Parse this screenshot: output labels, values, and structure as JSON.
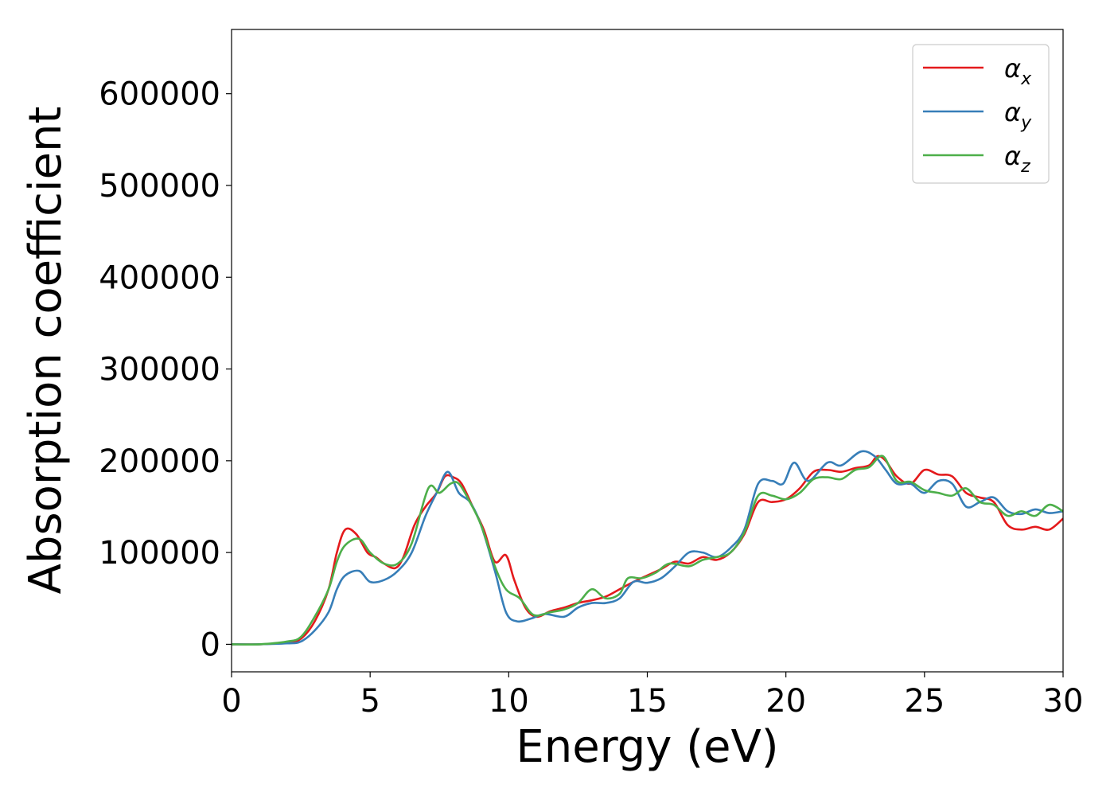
{
  "chart_data": {
    "type": "line",
    "title": "",
    "xlabel": "Energy (eV)",
    "ylabel": "Absorption coefficient",
    "xlim": [
      0,
      30
    ],
    "ylim": [
      -30000,
      670000
    ],
    "xticks": [
      0,
      5,
      10,
      15,
      20,
      25,
      30
    ],
    "yticks": [
      0,
      100000,
      200000,
      300000,
      400000,
      500000,
      600000
    ],
    "grid": false,
    "legend": {
      "placement": "top-right"
    },
    "series": [
      {
        "name": "α",
        "subscript": "x",
        "color": "#e41a1c",
        "points": [
          [
            0,
            0
          ],
          [
            1,
            0
          ],
          [
            2,
            2000
          ],
          [
            2.5,
            6000
          ],
          [
            3,
            25000
          ],
          [
            3.5,
            60000
          ],
          [
            3.8,
            100000
          ],
          [
            4.1,
            125000
          ],
          [
            4.5,
            120000
          ],
          [
            4.9,
            100000
          ],
          [
            5.2,
            95000
          ],
          [
            5.5,
            88000
          ],
          [
            5.9,
            83000
          ],
          [
            6.2,
            95000
          ],
          [
            6.6,
            130000
          ],
          [
            7,
            150000
          ],
          [
            7.4,
            165000
          ],
          [
            7.7,
            183000
          ],
          [
            8,
            182000
          ],
          [
            8.3,
            175000
          ],
          [
            8.7,
            150000
          ],
          [
            9.1,
            125000
          ],
          [
            9.5,
            90000
          ],
          [
            9.9,
            97000
          ],
          [
            10.2,
            70000
          ],
          [
            10.6,
            40000
          ],
          [
            11,
            30000
          ],
          [
            11.5,
            36000
          ],
          [
            12,
            40000
          ],
          [
            12.5,
            45000
          ],
          [
            13,
            48000
          ],
          [
            13.5,
            52000
          ],
          [
            14,
            60000
          ],
          [
            14.5,
            68000
          ],
          [
            15,
            75000
          ],
          [
            15.5,
            82000
          ],
          [
            16,
            90000
          ],
          [
            16.5,
            88000
          ],
          [
            17,
            95000
          ],
          [
            17.5,
            92000
          ],
          [
            18,
            100000
          ],
          [
            18.5,
            120000
          ],
          [
            19,
            155000
          ],
          [
            19.5,
            155000
          ],
          [
            20,
            158000
          ],
          [
            20.5,
            170000
          ],
          [
            21,
            188000
          ],
          [
            21.5,
            190000
          ],
          [
            22,
            188000
          ],
          [
            22.5,
            192000
          ],
          [
            23,
            195000
          ],
          [
            23.3,
            205000
          ],
          [
            23.6,
            200000
          ],
          [
            24,
            183000
          ],
          [
            24.5,
            175000
          ],
          [
            25,
            190000
          ],
          [
            25.5,
            185000
          ],
          [
            26,
            183000
          ],
          [
            26.5,
            165000
          ],
          [
            27,
            160000
          ],
          [
            27.5,
            155000
          ],
          [
            28,
            130000
          ],
          [
            28.5,
            125000
          ],
          [
            29,
            128000
          ],
          [
            29.5,
            125000
          ],
          [
            30,
            137000
          ]
        ]
      },
      {
        "name": "α",
        "subscript": "y",
        "color": "#377eb8",
        "points": [
          [
            0,
            0
          ],
          [
            1,
            0
          ],
          [
            2,
            1000
          ],
          [
            2.5,
            3000
          ],
          [
            3,
            15000
          ],
          [
            3.5,
            35000
          ],
          [
            3.8,
            60000
          ],
          [
            4.1,
            75000
          ],
          [
            4.6,
            80000
          ],
          [
            5,
            68000
          ],
          [
            5.5,
            70000
          ],
          [
            6,
            80000
          ],
          [
            6.5,
            100000
          ],
          [
            7,
            140000
          ],
          [
            7.4,
            165000
          ],
          [
            7.8,
            188000
          ],
          [
            8.2,
            165000
          ],
          [
            8.6,
            155000
          ],
          [
            9,
            130000
          ],
          [
            9.5,
            80000
          ],
          [
            9.9,
            35000
          ],
          [
            10.3,
            25000
          ],
          [
            10.8,
            28000
          ],
          [
            11.3,
            33000
          ],
          [
            12,
            30000
          ],
          [
            12.5,
            40000
          ],
          [
            13,
            45000
          ],
          [
            13.5,
            45000
          ],
          [
            14,
            50000
          ],
          [
            14.5,
            68000
          ],
          [
            15,
            67000
          ],
          [
            15.5,
            72000
          ],
          [
            16,
            85000
          ],
          [
            16.5,
            100000
          ],
          [
            17,
            100000
          ],
          [
            17.5,
            95000
          ],
          [
            18,
            105000
          ],
          [
            18.5,
            125000
          ],
          [
            19,
            175000
          ],
          [
            19.5,
            178000
          ],
          [
            19.9,
            175000
          ],
          [
            20.3,
            198000
          ],
          [
            20.8,
            178000
          ],
          [
            21.5,
            198000
          ],
          [
            22,
            195000
          ],
          [
            22.7,
            210000
          ],
          [
            23.2,
            205000
          ],
          [
            23.6,
            190000
          ],
          [
            24,
            175000
          ],
          [
            24.5,
            175000
          ],
          [
            25,
            165000
          ],
          [
            25.5,
            178000
          ],
          [
            26,
            175000
          ],
          [
            26.5,
            150000
          ],
          [
            27,
            155000
          ],
          [
            27.5,
            160000
          ],
          [
            28,
            145000
          ],
          [
            28.5,
            142000
          ],
          [
            29,
            147000
          ],
          [
            29.5,
            143000
          ],
          [
            30,
            145000
          ]
        ]
      },
      {
        "name": "α",
        "subscript": "z",
        "color": "#4daf4a",
        "points": [
          [
            0,
            0
          ],
          [
            1,
            0
          ],
          [
            2,
            3000
          ],
          [
            2.5,
            8000
          ],
          [
            3,
            30000
          ],
          [
            3.5,
            60000
          ],
          [
            3.8,
            90000
          ],
          [
            4.1,
            108000
          ],
          [
            4.6,
            115000
          ],
          [
            5,
            100000
          ],
          [
            5.5,
            88000
          ],
          [
            6,
            88000
          ],
          [
            6.5,
            110000
          ],
          [
            7.1,
            170000
          ],
          [
            7.5,
            165000
          ],
          [
            7.9,
            175000
          ],
          [
            8.2,
            175000
          ],
          [
            8.6,
            155000
          ],
          [
            9,
            130000
          ],
          [
            9.5,
            85000
          ],
          [
            9.9,
            60000
          ],
          [
            10.4,
            50000
          ],
          [
            10.9,
            32000
          ],
          [
            11.5,
            35000
          ],
          [
            12,
            38000
          ],
          [
            12.5,
            45000
          ],
          [
            13,
            60000
          ],
          [
            13.5,
            50000
          ],
          [
            14,
            55000
          ],
          [
            14.3,
            72000
          ],
          [
            14.8,
            72000
          ],
          [
            15.3,
            78000
          ],
          [
            15.8,
            88000
          ],
          [
            16.5,
            85000
          ],
          [
            17,
            92000
          ],
          [
            17.5,
            95000
          ],
          [
            18,
            100000
          ],
          [
            18.5,
            122000
          ],
          [
            19,
            162000
          ],
          [
            19.5,
            162000
          ],
          [
            20,
            158000
          ],
          [
            20.5,
            165000
          ],
          [
            21,
            180000
          ],
          [
            21.5,
            182000
          ],
          [
            22,
            180000
          ],
          [
            22.5,
            190000
          ],
          [
            23,
            193000
          ],
          [
            23.5,
            205000
          ],
          [
            24,
            178000
          ],
          [
            24.5,
            177000
          ],
          [
            25,
            168000
          ],
          [
            25.5,
            165000
          ],
          [
            26,
            162000
          ],
          [
            26.5,
            170000
          ],
          [
            27,
            155000
          ],
          [
            27.5,
            152000
          ],
          [
            28,
            140000
          ],
          [
            28.5,
            145000
          ],
          [
            29,
            140000
          ],
          [
            29.5,
            152000
          ],
          [
            30,
            145000
          ]
        ]
      }
    ]
  }
}
